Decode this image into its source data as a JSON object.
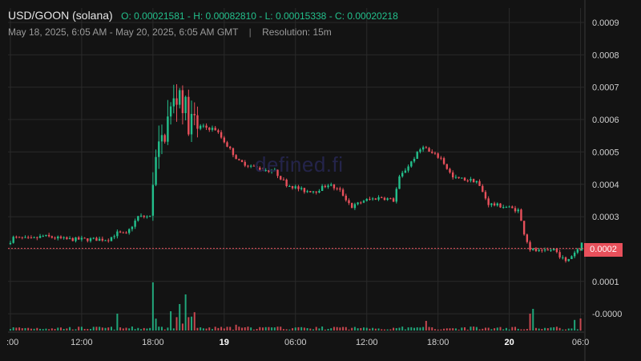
{
  "header": {
    "pair": "USD/GOON (solana)",
    "ohlc": "O: 0.00021581 - H: 0.00082810 - L: 0.00015338 - C: 0.00020218",
    "range": "May 18, 2025, 6:05 AM - May 20, 2025, 6:05 AM GMT",
    "separator": "|",
    "resolution": "Resolution: 15m"
  },
  "watermark": "defined.fi",
  "last_price_label": "0.0002",
  "colors": {
    "up": "#23c08c",
    "down": "#e8505b",
    "background": "#131313",
    "grid": "#2a2a2a"
  },
  "chart_data": {
    "type": "candlestick",
    "price_axis": {
      "ticks": [
        -0.0,
        0.0001,
        0.0002,
        0.0003,
        0.0004,
        0.0005,
        0.0006,
        0.0007,
        0.0008,
        0.0009
      ],
      "tick_labels": [
        "-0.0000",
        "0.0001",
        "",
        "0.0003",
        "0.0004",
        "0.0005",
        "0.0006",
        "0.0007",
        "0.0008",
        "0.0009"
      ],
      "range": [
        -5e-05,
        0.00095
      ],
      "position": "right"
    },
    "time_axis": {
      "labels": [
        ":00",
        "12:00",
        "18:00",
        "19",
        "06:00",
        "12:00",
        "18:00",
        "20",
        "06:0"
      ],
      "bold_labels": [
        "19",
        "20"
      ],
      "hours": [
        6,
        12,
        18,
        24,
        30,
        36,
        42,
        48,
        54
      ],
      "range_hours": [
        5.8,
        54.3
      ]
    },
    "last_price": 0.00020218,
    "key_points": [
      [
        6.0,
        0.000215
      ],
      [
        6.5,
        0.000235
      ],
      [
        8.0,
        0.00023
      ],
      [
        9.0,
        0.00024
      ],
      [
        11.0,
        0.00023
      ],
      [
        13.0,
        0.00023
      ],
      [
        14.5,
        0.00023
      ],
      [
        15.2,
        0.00025
      ],
      [
        16.0,
        0.000245
      ],
      [
        17.0,
        0.0003
      ],
      [
        18.0,
        0.0003
      ],
      [
        18.3,
        0.00045
      ],
      [
        18.8,
        0.0005
      ],
      [
        19.5,
        0.0006
      ],
      [
        20.0,
        0.00065
      ],
      [
        20.5,
        0.00069
      ],
      [
        21.2,
        0.0006
      ],
      [
        22.0,
        0.00058
      ],
      [
        23.5,
        0.00057
      ],
      [
        24.5,
        0.00052
      ],
      [
        25.5,
        0.00047
      ],
      [
        27.0,
        0.00045
      ],
      [
        28.5,
        0.00044
      ],
      [
        29.5,
        0.0004
      ],
      [
        31.0,
        0.00038
      ],
      [
        32.0,
        0.00038
      ],
      [
        33.0,
        0.0004
      ],
      [
        34.0,
        0.00038
      ],
      [
        35.0,
        0.00033
      ],
      [
        36.0,
        0.00035
      ],
      [
        37.5,
        0.00036
      ],
      [
        38.5,
        0.00035
      ],
      [
        39.0,
        0.00042
      ],
      [
        40.0,
        0.00047
      ],
      [
        41.0,
        0.00052
      ],
      [
        41.5,
        0.0005
      ],
      [
        42.5,
        0.00048
      ],
      [
        43.5,
        0.00042
      ],
      [
        45.5,
        0.00041
      ],
      [
        46.5,
        0.00034
      ],
      [
        48.0,
        0.00033
      ],
      [
        49.0,
        0.00032
      ],
      [
        49.5,
        0.00025
      ],
      [
        50.0,
        0.0002
      ],
      [
        51.0,
        0.00019
      ],
      [
        52.0,
        0.0002
      ],
      [
        53.0,
        0.00016
      ],
      [
        54.0,
        0.0002
      ]
    ],
    "volume_spikes": [
      [
        15.0,
        0.35
      ],
      [
        18.0,
        1.0
      ],
      [
        19.5,
        0.4
      ],
      [
        20.3,
        0.55
      ],
      [
        20.8,
        0.75
      ],
      [
        21.5,
        0.38
      ],
      [
        25.0,
        0.12
      ],
      [
        41.0,
        0.2
      ],
      [
        49.8,
        0.35
      ],
      [
        50.0,
        0.45
      ],
      [
        53.5,
        0.22
      ],
      [
        54.0,
        0.25
      ]
    ]
  }
}
